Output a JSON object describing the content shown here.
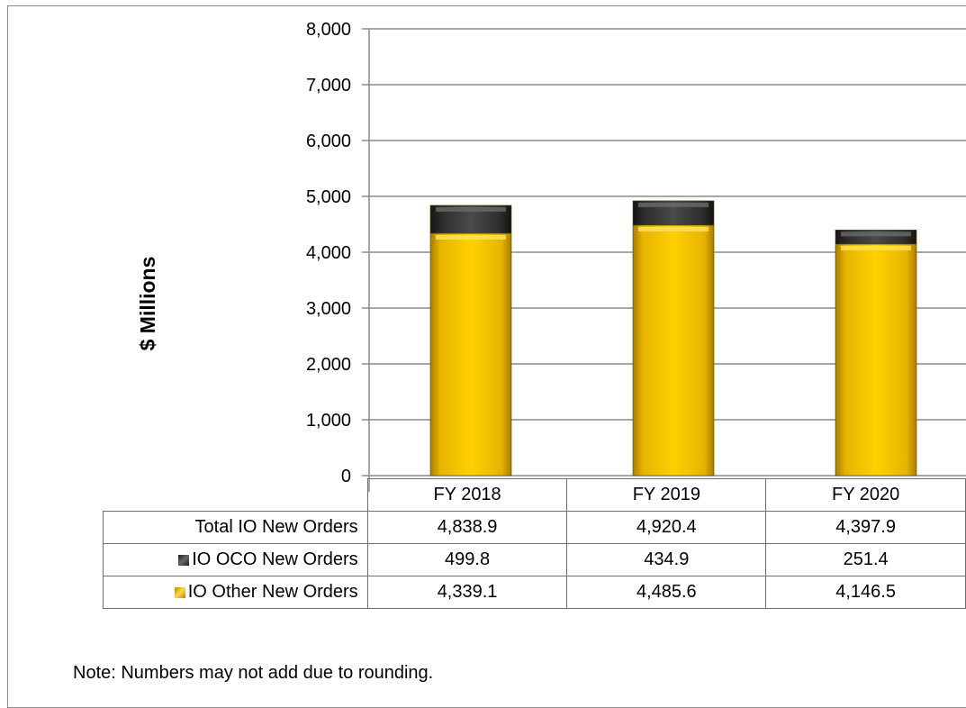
{
  "chart_data": {
    "type": "bar",
    "stacked": true,
    "categories": [
      "FY 2018",
      "FY 2019",
      "FY 2020"
    ],
    "series": [
      {
        "name": "IO Other New Orders",
        "values": [
          4339.1,
          4485.6,
          4146.5
        ],
        "color": "#f5c400"
      },
      {
        "name": "IO OCO New Orders",
        "values": [
          499.8,
          434.9,
          251.4
        ],
        "color": "#3a3a3a"
      }
    ],
    "totals": [
      4838.9,
      4920.4,
      4397.9
    ],
    "ylabel": "$ Millions",
    "ylim": [
      0,
      8000
    ],
    "yticks": [
      "0",
      "1,000",
      "2,000",
      "3,000",
      "4,000",
      "5,000",
      "6,000",
      "7,000",
      "8,000"
    ],
    "grid": true,
    "legend": "data-table"
  },
  "table": {
    "columns": [
      "FY 2018",
      "FY 2019",
      "FY 2020"
    ],
    "rows": [
      {
        "label": "Total IO New Orders",
        "values": [
          "4,838.9",
          "4,920.4",
          "4,397.9"
        ],
        "swatch": null
      },
      {
        "label": "IO OCO New Orders",
        "values": [
          "499.8",
          "434.9",
          "251.4"
        ],
        "swatch": "oco"
      },
      {
        "label": "IO Other New Orders",
        "values": [
          "4,339.1",
          "4,485.6",
          "4,146.5"
        ],
        "swatch": "other"
      }
    ]
  },
  "note": "Note: Numbers may not add due to rounding."
}
